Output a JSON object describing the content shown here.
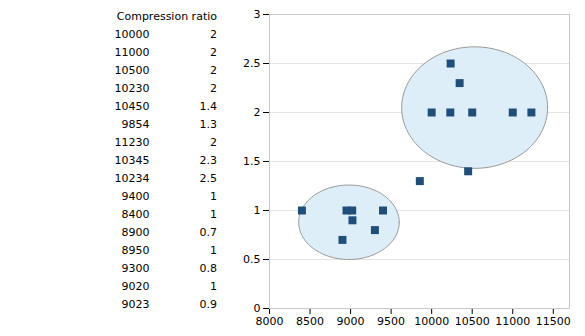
{
  "chart_data": {
    "type": "scatter",
    "table_header": "Compression ratio",
    "x": [
      10000,
      11000,
      10500,
      10230,
      10450,
      9854,
      11230,
      10345,
      10234,
      9400,
      8400,
      8900,
      8950,
      9300,
      9020,
      9023
    ],
    "values": [
      2,
      2,
      2,
      2,
      1.4,
      1.3,
      2,
      2.3,
      2.5,
      1,
      1,
      0.7,
      1,
      0.8,
      1,
      0.9
    ],
    "color": "#1F4E79",
    "marker": "square",
    "clusters": [
      {
        "center": [
          8980,
          0.88
        ],
        "radius_x": 620,
        "radius_y": 0.38,
        "color": "#999999",
        "fill": "#deeef8"
      },
      {
        "center": [
          10530,
          2.05
        ],
        "radius_x": 900,
        "radius_y": 0.62,
        "color": "#999999",
        "fill": "#deeef8"
      }
    ],
    "xlim": [
      8000,
      11700
    ],
    "ylim": [
      0,
      3
    ],
    "xticks": [
      8000,
      8500,
      9000,
      9500,
      10000,
      10500,
      11000,
      11500
    ],
    "yticks": [
      0,
      0.5,
      1,
      1.5,
      2,
      2.5,
      3
    ],
    "grid": "y"
  }
}
